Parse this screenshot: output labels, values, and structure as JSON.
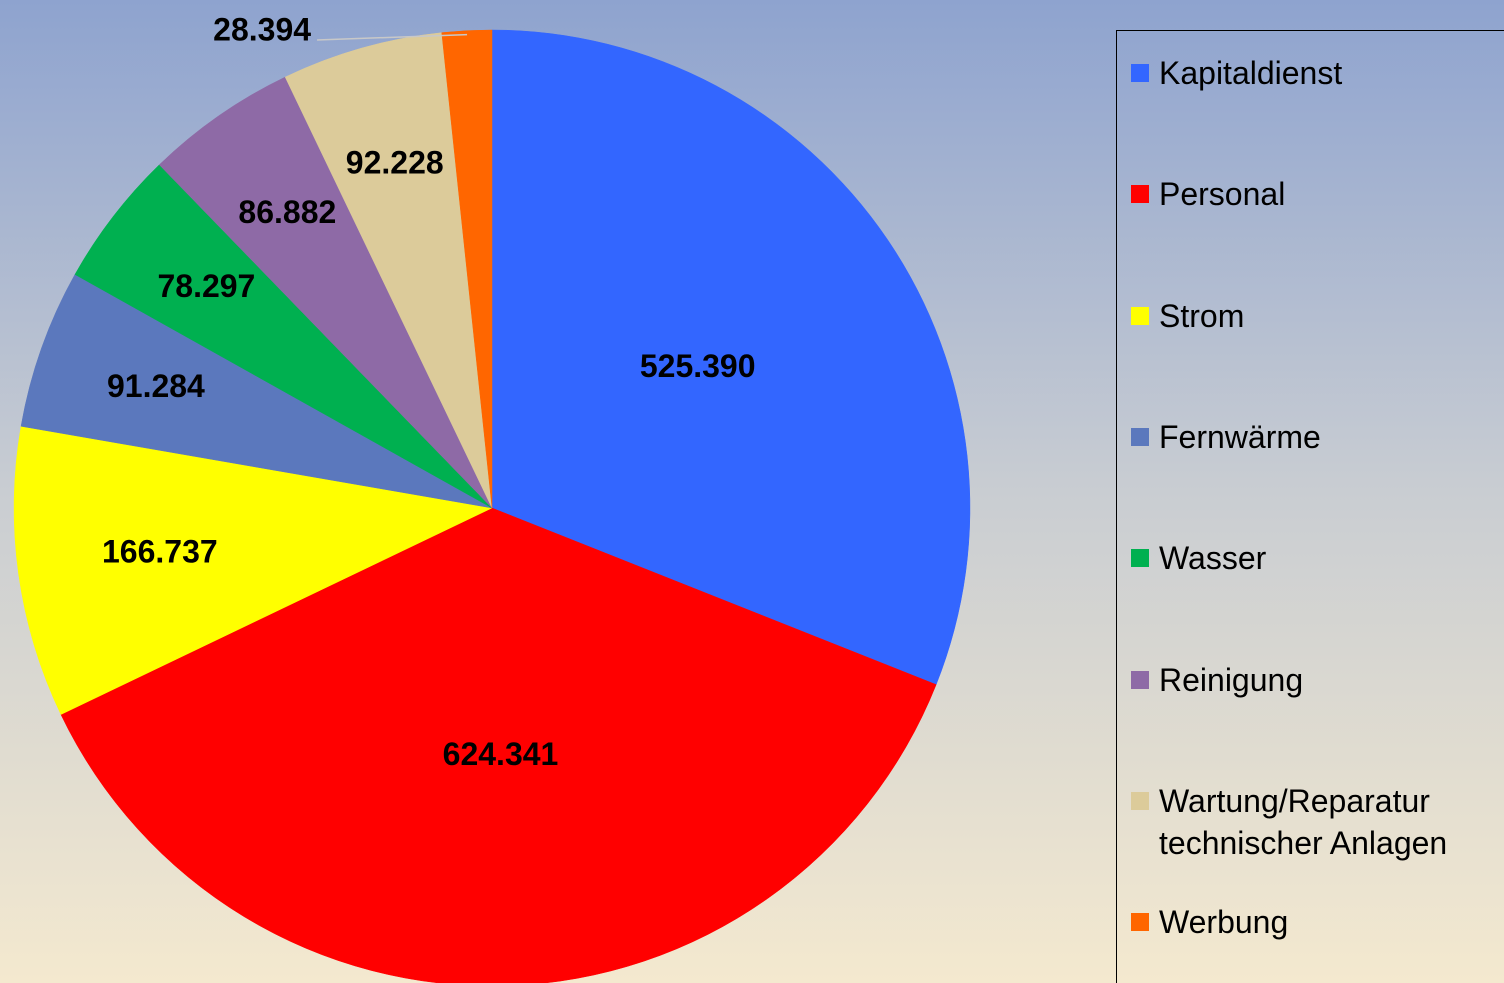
{
  "chart_data": {
    "type": "pie",
    "categories": [
      "Kapitaldienst",
      "Personal",
      "Strom",
      "Fernwärme",
      "Wasser",
      "Reinigung",
      "Wartung/Reparatur technischer Anlagen",
      "Werbung"
    ],
    "values": [
      525390,
      624341,
      166737,
      91284,
      78297,
      86882,
      92228,
      28394
    ],
    "value_labels": [
      "525.390",
      "624.341",
      "166.737",
      "91.284",
      "78.297",
      "86.882",
      "92.228",
      "28.394"
    ],
    "colors": [
      "#3366ff",
      "#ff0000",
      "#ffff00",
      "#5b78bd",
      "#00b050",
      "#8e6aa6",
      "#dccb9a",
      "#ff6600"
    ],
    "legend": "right"
  }
}
